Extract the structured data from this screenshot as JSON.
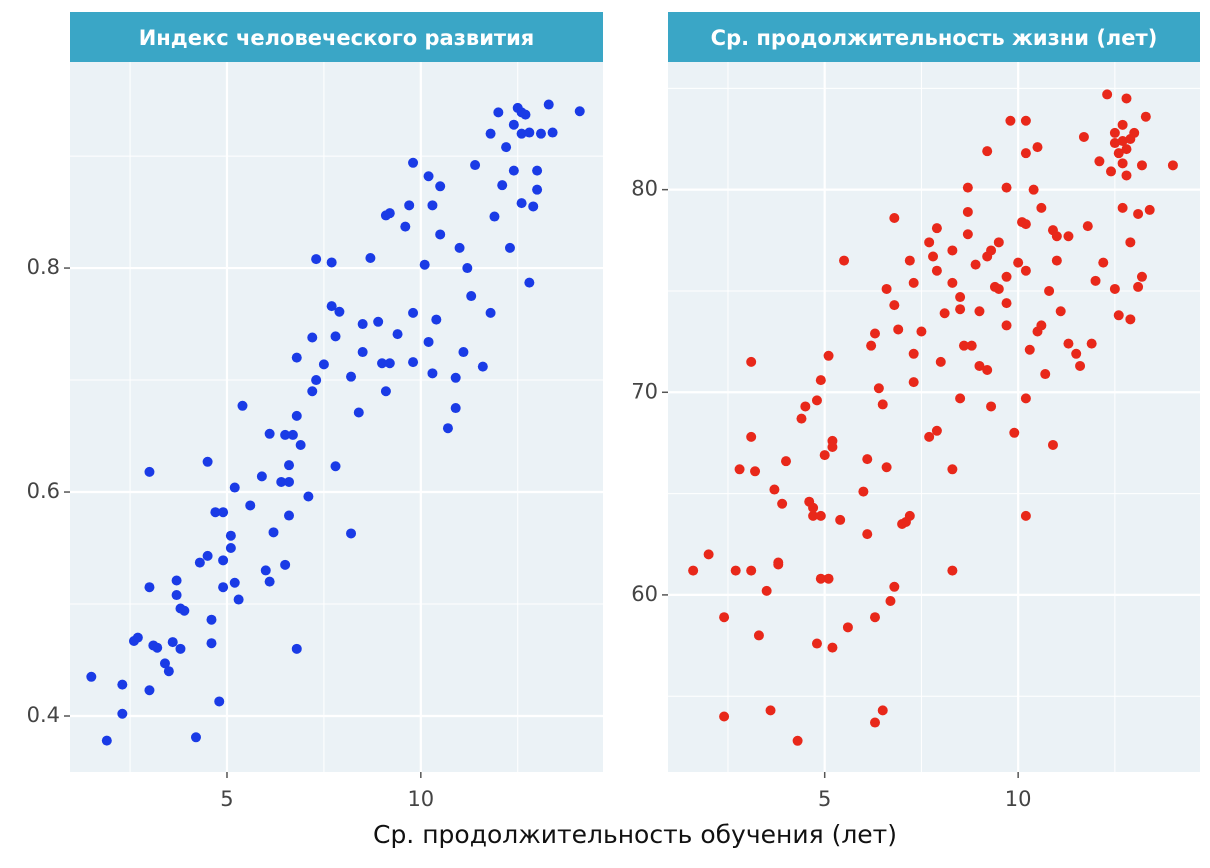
{
  "chart_data": [
    {
      "type": "scatter",
      "title": "Индекс человеческого развития",
      "xlabel": "Ср. продолжительность обучения (лет)",
      "color": "#1a3be6",
      "xlim": [
        0.95,
        14.7
      ],
      "ylim": [
        0.35,
        0.984
      ],
      "xticks": [
        5,
        10
      ],
      "yticks": [
        0.4,
        0.6,
        0.8
      ],
      "minor_xticks": [
        2.5,
        7.5,
        12.5
      ],
      "minor_yticks": [
        0.5,
        0.7,
        0.9
      ],
      "grid": true,
      "x": [
        1.5,
        1.9,
        2.3,
        2.3,
        2.6,
        2.7,
        3.0,
        3.0,
        3.0,
        3.1,
        3.2,
        3.4,
        3.5,
        3.6,
        3.7,
        3.7,
        3.8,
        3.9,
        3.8,
        4.2,
        4.3,
        4.5,
        4.5,
        4.6,
        4.6,
        4.7,
        4.9,
        4.8,
        4.9,
        4.9,
        5.2,
        5.1,
        5.1,
        5.2,
        5.3,
        5.4,
        5.6,
        5.9,
        6.0,
        6.1,
        6.1,
        6.2,
        6.4,
        6.6,
        6.5,
        6.5,
        6.7,
        6.6,
        6.6,
        6.8,
        6.8,
        6.8,
        6.9,
        7.1,
        7.2,
        7.3,
        7.2,
        7.3,
        7.5,
        7.7,
        7.7,
        7.8,
        7.8,
        7.9,
        8.2,
        8.2,
        8.4,
        8.5,
        8.5,
        8.7,
        8.9,
        9.0,
        9.2,
        9.1,
        9.1,
        9.2,
        9.4,
        9.6,
        9.7,
        9.8,
        9.8,
        9.8,
        10.1,
        10.2,
        10.2,
        10.3,
        10.3,
        10.4,
        10.5,
        10.5,
        10.7,
        10.9,
        10.9,
        11.1,
        11.0,
        11.2,
        11.3,
        11.4,
        11.6,
        11.8,
        11.8,
        11.9,
        12.0,
        12.1,
        12.2,
        12.3,
        12.4,
        12.5,
        12.6,
        12.7,
        12.6,
        12.8,
        12.8,
        12.6,
        12.9,
        13.0,
        13.0,
        13.3,
        13.4,
        14.1,
        13.1,
        12.4
      ],
      "values": [
        0.435,
        0.378,
        0.428,
        0.402,
        0.467,
        0.47,
        0.618,
        0.515,
        0.423,
        0.463,
        0.461,
        0.447,
        0.44,
        0.466,
        0.508,
        0.521,
        0.496,
        0.494,
        0.46,
        0.381,
        0.537,
        0.627,
        0.543,
        0.486,
        0.465,
        0.582,
        0.582,
        0.413,
        0.539,
        0.515,
        0.604,
        0.561,
        0.55,
        0.519,
        0.504,
        0.677,
        0.588,
        0.614,
        0.53,
        0.52,
        0.652,
        0.564,
        0.609,
        0.609,
        0.535,
        0.651,
        0.651,
        0.624,
        0.579,
        0.46,
        0.72,
        0.668,
        0.642,
        0.596,
        0.69,
        0.7,
        0.738,
        0.808,
        0.714,
        0.805,
        0.766,
        0.623,
        0.739,
        0.761,
        0.703,
        0.563,
        0.671,
        0.75,
        0.725,
        0.809,
        0.752,
        0.715,
        0.715,
        0.69,
        0.847,
        0.849,
        0.741,
        0.837,
        0.856,
        0.76,
        0.894,
        0.716,
        0.803,
        0.734,
        0.882,
        0.856,
        0.706,
        0.754,
        0.873,
        0.83,
        0.657,
        0.675,
        0.702,
        0.725,
        0.818,
        0.8,
        0.775,
        0.892,
        0.712,
        0.76,
        0.92,
        0.846,
        0.939,
        0.874,
        0.908,
        0.818,
        0.928,
        0.943,
        0.939,
        0.937,
        0.92,
        0.921,
        0.787,
        0.858,
        0.855,
        0.87,
        0.887,
        0.946,
        0.921,
        0.94,
        0.92,
        0.887
      ]
    },
    {
      "type": "scatter",
      "title": "Ср. продолжительность жизни (лет)",
      "color": "#e8281a",
      "xlim": [
        0.95,
        14.7
      ],
      "ylim": [
        51.26,
        86.3
      ],
      "xticks": [
        5,
        10
      ],
      "yticks": [
        60,
        70,
        80
      ],
      "minor_xticks": [
        2.5,
        7.5,
        12.5
      ],
      "minor_yticks": [
        55,
        65,
        75,
        85
      ],
      "grid": true,
      "x": [
        1.6,
        2.0,
        2.4,
        2.4,
        2.7,
        3.1,
        2.8,
        3.1,
        3.1,
        3.2,
        3.3,
        3.5,
        3.6,
        3.7,
        3.8,
        3.8,
        3.9,
        4.0,
        4.3,
        4.4,
        4.5,
        4.6,
        4.7,
        4.7,
        4.8,
        4.9,
        4.8,
        4.9,
        4.9,
        5.1,
        5.0,
        5.2,
        5.2,
        5.1,
        5.2,
        5.4,
        5.5,
        5.6,
        6.0,
        6.1,
        6.1,
        6.2,
        6.3,
        6.3,
        6.3,
        6.4,
        6.5,
        6.5,
        6.6,
        6.6,
        6.7,
        6.8,
        6.8,
        6.8,
        6.9,
        7.0,
        7.1,
        7.2,
        7.2,
        7.3,
        7.3,
        7.3,
        7.5,
        7.7,
        7.8,
        7.7,
        7.9,
        7.9,
        7.9,
        8.0,
        8.1,
        8.3,
        8.3,
        8.3,
        8.3,
        8.5,
        8.5,
        8.5,
        8.6,
        8.8,
        8.7,
        8.7,
        8.7,
        8.9,
        9.0,
        9.0,
        9.2,
        9.2,
        9.3,
        9.2,
        9.3,
        9.4,
        9.5,
        9.5,
        9.7,
        9.7,
        9.7,
        9.7,
        9.8,
        9.9,
        10.0,
        10.1,
        10.2,
        10.2,
        10.2,
        10.2,
        10.2,
        10.2,
        10.3,
        10.4,
        10.5,
        10.6,
        10.5,
        10.6,
        10.7,
        10.8,
        10.9,
        10.9,
        11.0,
        11.0,
        11.1,
        11.3,
        11.3,
        11.5,
        11.6,
        11.7,
        11.8,
        11.9,
        12.0,
        12.1,
        12.2,
        12.3,
        12.4,
        12.5,
        12.7,
        12.8,
        12.9,
        12.5,
        12.6,
        12.7,
        12.8,
        12.5,
        12.6,
        12.9,
        12.7,
        13.1,
        12.7,
        12.8,
        13.0,
        12.9,
        13.1,
        13.2,
        13.2,
        13.3,
        13.4,
        14.0
      ],
      "values": [
        61.2,
        62.0,
        58.9,
        54.0,
        61.2,
        61.2,
        66.2,
        71.5,
        67.8,
        66.1,
        58.0,
        60.2,
        54.3,
        65.2,
        61.6,
        61.5,
        64.5,
        66.6,
        52.8,
        68.7,
        69.3,
        64.6,
        64.3,
        63.9,
        69.6,
        70.6,
        57.6,
        63.9,
        60.8,
        60.8,
        66.9,
        67.6,
        67.3,
        71.8,
        57.4,
        63.7,
        76.5,
        58.4,
        65.1,
        66.7,
        63.0,
        72.3,
        72.9,
        58.9,
        53.7,
        70.2,
        54.3,
        69.4,
        75.1,
        66.3,
        59.7,
        60.4,
        78.6,
        74.3,
        73.1,
        63.5,
        63.6,
        63.9,
        76.5,
        70.5,
        71.9,
        75.4,
        73.0,
        77.4,
        76.7,
        67.8,
        68.1,
        78.1,
        76.0,
        71.5,
        73.9,
        77.0,
        75.4,
        66.2,
        61.2,
        74.7,
        74.1,
        69.7,
        72.3,
        72.3,
        78.9,
        80.1,
        77.8,
        76.3,
        74.0,
        71.3,
        71.1,
        76.7,
        77.0,
        81.9,
        69.3,
        75.2,
        75.1,
        77.4,
        80.1,
        75.7,
        74.4,
        73.3,
        83.4,
        68.0,
        76.4,
        78.4,
        78.3,
        69.7,
        63.9,
        83.4,
        81.8,
        76.0,
        72.1,
        80.0,
        82.1,
        79.1,
        73.0,
        73.3,
        70.9,
        75.0,
        67.4,
        78.0,
        77.7,
        76.5,
        74.0,
        72.4,
        77.7,
        71.9,
        71.3,
        82.6,
        78.2,
        72.4,
        75.5,
        81.4,
        76.4,
        84.7,
        80.9,
        82.8,
        82.4,
        82.0,
        82.5,
        82.3,
        81.8,
        81.3,
        80.7,
        75.1,
        73.8,
        77.4,
        79.1,
        78.8,
        83.2,
        84.5,
        82.8,
        73.6,
        75.2,
        75.7,
        81.2,
        83.6,
        79.0,
        81.2
      ]
    }
  ]
}
